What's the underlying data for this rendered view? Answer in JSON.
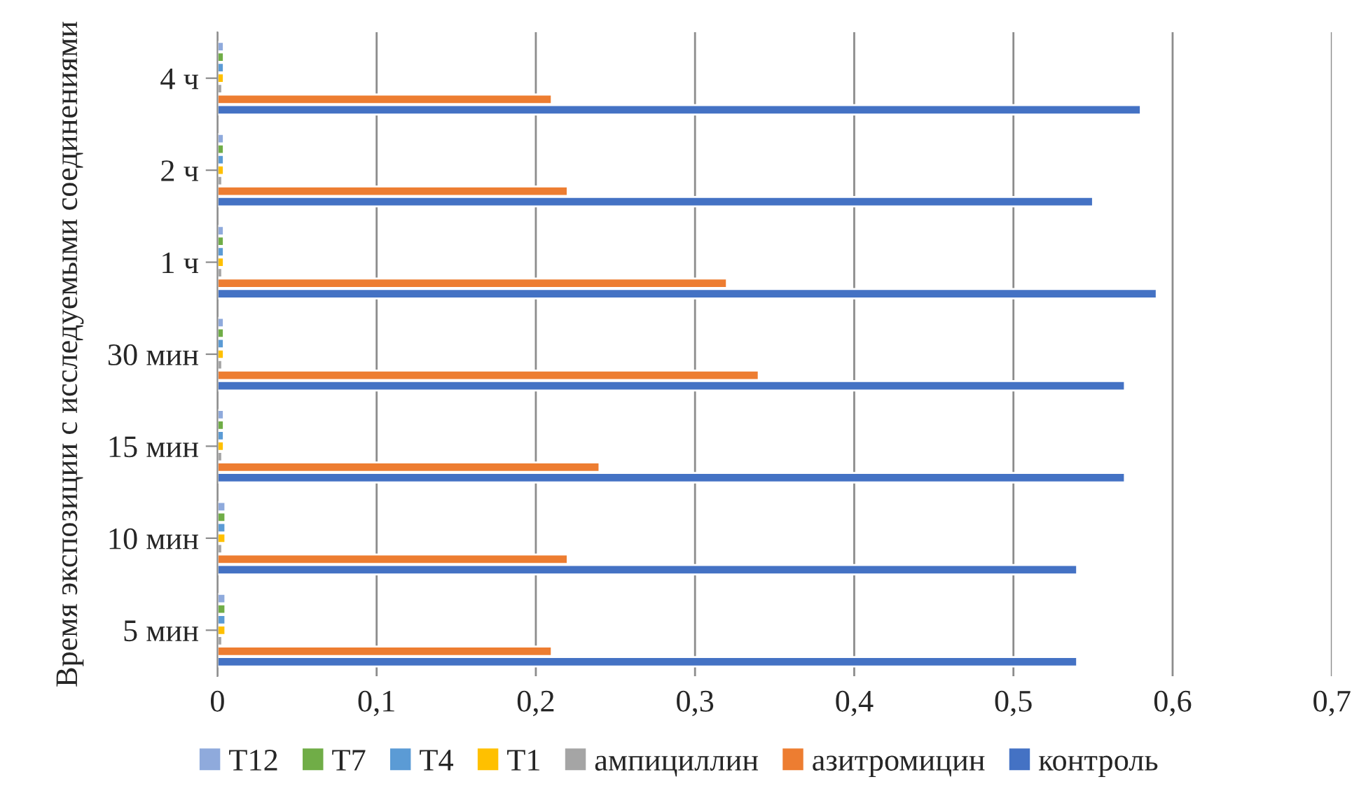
{
  "chart_data": {
    "type": "bar",
    "orientation": "horizontal",
    "ylabel": "Время экспозиции с исследуемыми соединениями",
    "categories": [
      "4 ч",
      "2 ч",
      "1 ч",
      "30 мин",
      "15 мин",
      "10 мин",
      "5 мин"
    ],
    "series": [
      {
        "name": "Т12",
        "color": "#8faadc",
        "values": [
          0.004,
          0.004,
          0.004,
          0.004,
          0.004,
          0.005,
          0.005
        ]
      },
      {
        "name": "Т7",
        "color": "#70ad47",
        "values": [
          0.004,
          0.004,
          0.004,
          0.004,
          0.004,
          0.005,
          0.005
        ]
      },
      {
        "name": "Т4",
        "color": "#5b9bd5",
        "values": [
          0.004,
          0.004,
          0.004,
          0.004,
          0.004,
          0.005,
          0.005
        ]
      },
      {
        "name": "Т1",
        "color": "#ffc000",
        "values": [
          0.004,
          0.004,
          0.004,
          0.004,
          0.004,
          0.005,
          0.005
        ]
      },
      {
        "name": "ампициллин",
        "color": "#a5a5a5",
        "values": [
          0.003,
          0.003,
          0.003,
          0.003,
          0.003,
          0.003,
          0.003
        ]
      },
      {
        "name": "азитромицин",
        "color": "#ed7d31",
        "values": [
          0.21,
          0.22,
          0.32,
          0.34,
          0.24,
          0.22,
          0.21
        ]
      },
      {
        "name": "контроль",
        "color": "#4472c4",
        "values": [
          0.58,
          0.55,
          0.59,
          0.57,
          0.57,
          0.54,
          0.54
        ]
      }
    ],
    "xlim": [
      0,
      0.7
    ],
    "xticks": [
      {
        "value": 0,
        "label": "0"
      },
      {
        "value": 0.1,
        "label": "0,1"
      },
      {
        "value": 0.2,
        "label": "0,2"
      },
      {
        "value": 0.3,
        "label": "0,3"
      },
      {
        "value": 0.4,
        "label": "0,4"
      },
      {
        "value": 0.5,
        "label": "0,5"
      },
      {
        "value": 0.6,
        "label": "0,6"
      },
      {
        "value": 0.7,
        "label": "0,7"
      }
    ],
    "grid": "x",
    "legend": "bottom"
  }
}
